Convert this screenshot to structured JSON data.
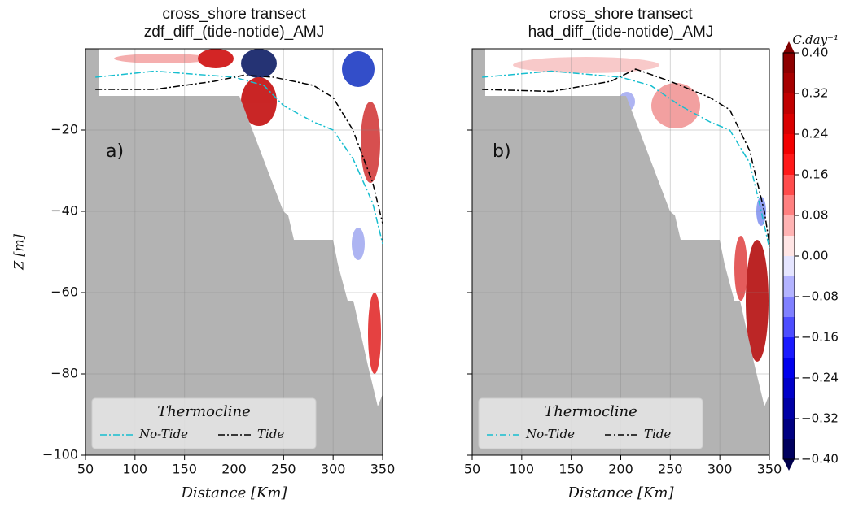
{
  "chart_data": [
    {
      "type": "contour",
      "title": [
        "cross_shore transect",
        "zdf_diff_(tide-notide)_AMJ"
      ],
      "panel_label": "a)",
      "xlabel": "Distance [Km]",
      "ylabel": "Z [m]",
      "xlim": [
        50,
        350
      ],
      "ylim": [
        -100,
        0
      ],
      "xticks": [
        50,
        100,
        150,
        200,
        250,
        300,
        350
      ],
      "yticks": [
        {
          "value": -100,
          "label": "−100"
        },
        {
          "value": -80,
          "label": "−80"
        },
        {
          "value": -60,
          "label": "−60"
        },
        {
          "value": -40,
          "label": "−40"
        },
        {
          "value": -20,
          "label": "−20"
        }
      ],
      "ytick_labels": true,
      "grid": true,
      "legend_title": "Thermocline",
      "series": [
        {
          "name": "No-Tide",
          "color": "#17becf",
          "x": [
            60,
            120,
            200,
            230,
            250,
            280,
            300,
            320,
            340,
            350
          ],
          "values": [
            -7,
            -5.5,
            -7,
            -9,
            -14,
            -18,
            -20,
            -27,
            -38,
            -48
          ]
        },
        {
          "name": "Tide",
          "color": "#000000",
          "x": [
            60,
            120,
            180,
            210,
            240,
            280,
            300,
            320,
            340,
            350
          ],
          "values": [
            -10,
            -10,
            -8,
            -6.5,
            -7,
            -9,
            -12,
            -20,
            -33,
            -43
          ]
        }
      ]
    },
    {
      "type": "contour",
      "title": [
        "cross_shore transect",
        "had_diff_(tide-notide)_AMJ"
      ],
      "panel_label": "b)",
      "xlabel": "Distance [Km]",
      "xlim": [
        50,
        350
      ],
      "ylim": [
        -100,
        0
      ],
      "xticks": [
        50,
        100,
        150,
        200,
        250,
        300,
        350
      ],
      "yticks": [
        -100,
        -80,
        -60,
        -40,
        -20
      ],
      "ytick_labels": false,
      "grid": true,
      "legend_title": "Thermocline",
      "series": [
        {
          "name": "No-Tide",
          "color": "#17becf",
          "x": [
            60,
            130,
            200,
            230,
            260,
            290,
            310,
            330,
            340,
            350
          ],
          "values": [
            -7,
            -5.5,
            -7,
            -9,
            -14,
            -18,
            -20,
            -28,
            -38,
            -49
          ]
        },
        {
          "name": "Tide",
          "color": "#000000",
          "x": [
            60,
            130,
            190,
            215,
            250,
            290,
            310,
            330,
            345,
            350
          ],
          "values": [
            -10,
            -10.5,
            -8,
            -5,
            -8,
            -12,
            -15,
            -25,
            -40,
            -48
          ]
        }
      ]
    },
    {
      "type": "colorbar",
      "title": "C.day⁻¹",
      "clim": [
        -0.4,
        0.4
      ],
      "colormap": [
        "#00004c",
        "#0000ff",
        "#ffffff",
        "#ff0000",
        "#800000"
      ],
      "ticks": [
        {
          "value": 0.4,
          "label": "0.40"
        },
        {
          "value": 0.32,
          "label": "0.32"
        },
        {
          "value": 0.24,
          "label": "0.24"
        },
        {
          "value": 0.16,
          "label": "0.16"
        },
        {
          "value": 0.08,
          "label": "0.08"
        },
        {
          "value": 0,
          "label": "0.00"
        },
        {
          "value": -0.08,
          "label": "−0.08"
        },
        {
          "value": -0.16,
          "label": "−0.16"
        },
        {
          "value": -0.24,
          "label": "−0.24"
        },
        {
          "value": -0.32,
          "label": "−0.32"
        },
        {
          "value": -0.4,
          "label": "−0.40"
        }
      ]
    }
  ]
}
